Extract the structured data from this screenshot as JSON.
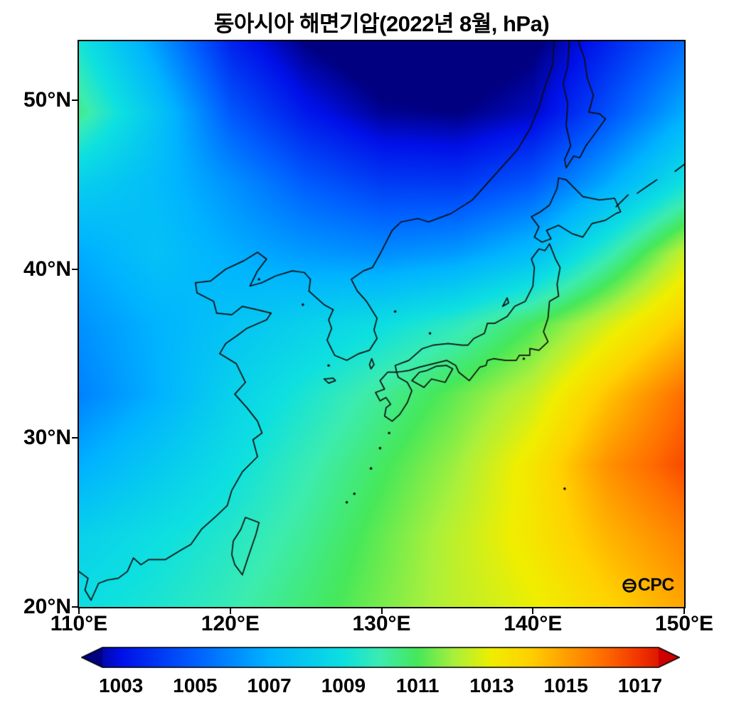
{
  "chart_data": {
    "type": "heatmap",
    "title": "동아시아 해면기압(2022년 8월, hPa)",
    "variable": "sea level pressure",
    "units": "hPa",
    "x_axis": {
      "range": [
        110,
        150
      ],
      "ticks": [
        {
          "label": "110°E",
          "lon": 110
        },
        {
          "label": "120°E",
          "lon": 120
        },
        {
          "label": "130°E",
          "lon": 130
        },
        {
          "label": "140°E",
          "lon": 140
        },
        {
          "label": "150°E",
          "lon": 150
        }
      ]
    },
    "y_axis": {
      "range": [
        20,
        53.5
      ],
      "ticks": [
        {
          "label": "50°N",
          "lat": 50
        },
        {
          "label": "40°N",
          "lat": 40
        },
        {
          "label": "30°N",
          "lat": 30
        },
        {
          "label": "20°N",
          "lat": 20
        }
      ]
    },
    "grid": {
      "lons": [
        110,
        115,
        120,
        125,
        130,
        135,
        140,
        145,
        150
      ],
      "lats": [
        53.5,
        49.31,
        45.13,
        40.94,
        36.75,
        32.56,
        28.38,
        24.19,
        20.0
      ],
      "values_hpa": [
        [
          1009.2,
          1006.5,
          1003.5,
          1002.0,
          1001.2,
          1001.2,
          1001.8,
          1003.5,
          1005.2
        ],
        [
          1010.4,
          1007.8,
          1004.8,
          1003.2,
          1002.2,
          1002.0,
          1002.6,
          1004.6,
          1006.8
        ],
        [
          1008.2,
          1007.4,
          1006.2,
          1004.9,
          1004.1,
          1004.0,
          1004.8,
          1006.8,
          1009.0
        ],
        [
          1006.8,
          1007.6,
          1006.9,
          1006.4,
          1006.1,
          1006.4,
          1007.4,
          1009.8,
          1012.4
        ],
        [
          1006.2,
          1007.0,
          1007.7,
          1008.3,
          1008.9,
          1009.7,
          1011.0,
          1012.6,
          1014.2
        ],
        [
          1005.8,
          1006.9,
          1008.3,
          1009.3,
          1010.3,
          1011.3,
          1012.4,
          1014.3,
          1016.0
        ],
        [
          1006.9,
          1007.9,
          1008.9,
          1009.9,
          1010.9,
          1011.9,
          1013.3,
          1015.3,
          1016.6
        ],
        [
          1008.3,
          1008.9,
          1009.5,
          1010.3,
          1011.3,
          1012.3,
          1013.3,
          1014.6,
          1015.6
        ],
        [
          1008.9,
          1009.3,
          1009.9,
          1010.7,
          1011.5,
          1012.3,
          1012.9,
          1013.9,
          1014.9
        ]
      ]
    },
    "colormap": {
      "stops": [
        [
          1002.0,
          "#000080"
        ],
        [
          1003.0,
          "#0010e8"
        ],
        [
          1005.0,
          "#0060ff"
        ],
        [
          1007.0,
          "#00b4ff"
        ],
        [
          1009.0,
          "#0ee0e0"
        ],
        [
          1010.0,
          "#3cecb0"
        ],
        [
          1011.0,
          "#46e85a"
        ],
        [
          1012.0,
          "#aaf03c"
        ],
        [
          1013.0,
          "#f0ee00"
        ],
        [
          1014.0,
          "#ffd200"
        ],
        [
          1015.0,
          "#ffa000"
        ],
        [
          1016.0,
          "#ff6e00"
        ],
        [
          1017.0,
          "#f23400"
        ],
        [
          1018.0,
          "#cc0000"
        ]
      ],
      "under": "#000080",
      "over": "#cc0000"
    },
    "colorbar": {
      "vmin": 1002.5,
      "vmax": 1017.5,
      "tick_values": [
        1003,
        1005,
        1007,
        1009,
        1011,
        1013,
        1015,
        1017
      ],
      "tick_labels": [
        "1003",
        "1005",
        "1007",
        "1009",
        "1011",
        "1013",
        "1015",
        "1017"
      ]
    },
    "coastlines": [
      [
        [
          110,
          22.1
        ],
        [
          110.6,
          21.7
        ],
        [
          110.4,
          21.0
        ],
        [
          110.8,
          20.4
        ],
        [
          111.3,
          21.4
        ],
        [
          111.9,
          21.6
        ],
        [
          112.6,
          21.7
        ],
        [
          113.2,
          22.1
        ],
        [
          113.6,
          22.9
        ],
        [
          114.1,
          22.5
        ],
        [
          114.6,
          22.8
        ],
        [
          115.7,
          22.8
        ],
        [
          116.8,
          23.4
        ],
        [
          117.4,
          23.7
        ],
        [
          118.1,
          24.6
        ],
        [
          119.1,
          25.4
        ],
        [
          119.8,
          26.0
        ],
        [
          120.1,
          26.9
        ],
        [
          120.8,
          28.0
        ],
        [
          121.8,
          28.9
        ],
        [
          121.5,
          29.9
        ],
        [
          122.1,
          30.3
        ],
        [
          121.8,
          31.0
        ],
        [
          121.1,
          31.8
        ],
        [
          120.3,
          32.6
        ],
        [
          121.0,
          33.3
        ],
        [
          120.4,
          34.4
        ],
        [
          119.3,
          35.0
        ],
        [
          119.7,
          35.6
        ],
        [
          120.5,
          36.1
        ],
        [
          121.1,
          36.5
        ],
        [
          122.4,
          37.0
        ],
        [
          122.7,
          37.4
        ],
        [
          121.8,
          37.6
        ],
        [
          120.8,
          37.8
        ],
        [
          120.1,
          37.3
        ],
        [
          119.1,
          37.4
        ],
        [
          118.9,
          38.1
        ],
        [
          117.8,
          38.6
        ],
        [
          117.7,
          39.2
        ],
        [
          118.7,
          39.3
        ],
        [
          119.7,
          40.0
        ],
        [
          120.9,
          40.5
        ],
        [
          121.8,
          41.0
        ],
        [
          122.4,
          40.6
        ],
        [
          121.8,
          39.9
        ],
        [
          121.3,
          39.0
        ],
        [
          122.1,
          39.2
        ],
        [
          123.0,
          39.6
        ],
        [
          124.1,
          39.9
        ],
        [
          124.9,
          39.8
        ],
        [
          125.3,
          39.4
        ],
        [
          125.2,
          38.7
        ],
        [
          126.2,
          37.9
        ],
        [
          126.8,
          37.6
        ],
        [
          126.5,
          37.0
        ],
        [
          126.7,
          36.5
        ],
        [
          126.4,
          35.8
        ],
        [
          126.9,
          34.9
        ],
        [
          127.7,
          34.6
        ],
        [
          128.5,
          35.0
        ],
        [
          129.2,
          35.2
        ],
        [
          129.7,
          35.9
        ],
        [
          129.5,
          36.4
        ],
        [
          129.7,
          37.1
        ],
        [
          129.0,
          38.1
        ],
        [
          128.4,
          38.7
        ],
        [
          128.0,
          39.4
        ],
        [
          128.8,
          39.9
        ],
        [
          129.4,
          40.1
        ],
        [
          129.9,
          40.9
        ],
        [
          130.7,
          42.3
        ],
        [
          131.3,
          42.8
        ],
        [
          132.4,
          43.0
        ],
        [
          133.1,
          42.8
        ],
        [
          134.6,
          43.3
        ],
        [
          136.0,
          44.1
        ],
        [
          137.0,
          45.1
        ],
        [
          138.0,
          46.1
        ],
        [
          139.0,
          47.1
        ],
        [
          139.8,
          48.3
        ],
        [
          140.4,
          49.6
        ],
        [
          140.8,
          50.8
        ],
        [
          141.3,
          52.1
        ],
        [
          141.4,
          53.5
        ]
      ],
      [
        [
          142.4,
          53.5
        ],
        [
          142.3,
          52.0
        ],
        [
          142.0,
          51.0
        ],
        [
          142.3,
          49.8
        ],
        [
          142.2,
          48.5
        ],
        [
          142.5,
          47.3
        ],
        [
          142.1,
          46.5
        ],
        [
          142.2,
          46.0
        ],
        [
          142.7,
          46.7
        ],
        [
          143.1,
          46.6
        ],
        [
          143.5,
          47.3
        ],
        [
          144.4,
          48.4
        ],
        [
          144.8,
          48.9
        ],
        [
          144.4,
          49.2
        ],
        [
          143.7,
          49.3
        ],
        [
          144.0,
          50.3
        ],
        [
          143.6,
          51.3
        ],
        [
          143.4,
          52.5
        ],
        [
          143.0,
          53.5
        ]
      ],
      [
        [
          139.9,
          43.1
        ],
        [
          140.4,
          42.5
        ],
        [
          140.1,
          41.9
        ],
        [
          140.6,
          41.6
        ],
        [
          141.2,
          41.8
        ],
        [
          140.9,
          42.3
        ],
        [
          141.7,
          42.6
        ],
        [
          142.6,
          42.1
        ],
        [
          143.3,
          41.9
        ],
        [
          143.9,
          42.7
        ],
        [
          144.8,
          42.9
        ],
        [
          145.5,
          43.3
        ],
        [
          145.8,
          43.4
        ],
        [
          145.4,
          44.2
        ],
        [
          144.4,
          44.1
        ],
        [
          143.3,
          44.3
        ],
        [
          142.2,
          45.3
        ],
        [
          141.7,
          45.4
        ],
        [
          141.6,
          44.8
        ],
        [
          141.1,
          43.8
        ],
        [
          140.5,
          43.4
        ],
        [
          139.9,
          43.1
        ]
      ],
      [
        [
          141.1,
          41.5
        ],
        [
          141.5,
          40.6
        ],
        [
          141.8,
          40.1
        ],
        [
          141.6,
          39.1
        ],
        [
          141.7,
          38.4
        ],
        [
          141.1,
          38.1
        ],
        [
          141.0,
          37.1
        ],
        [
          140.7,
          36.3
        ],
        [
          141.0,
          35.7
        ],
        [
          140.4,
          35.2
        ],
        [
          139.8,
          35.3
        ],
        [
          139.8,
          34.9
        ],
        [
          139.1,
          34.9
        ],
        [
          138.9,
          34.6
        ],
        [
          138.2,
          34.6
        ],
        [
          137.4,
          34.7
        ],
        [
          137.0,
          34.6
        ],
        [
          136.9,
          34.3
        ],
        [
          136.5,
          34.2
        ],
        [
          135.8,
          33.4
        ],
        [
          135.1,
          33.9
        ],
        [
          134.9,
          34.3
        ],
        [
          134.3,
          34.6
        ],
        [
          133.4,
          34.4
        ],
        [
          132.5,
          34.2
        ],
        [
          131.8,
          34.0
        ],
        [
          131.0,
          33.9
        ],
        [
          130.9,
          34.3
        ],
        [
          131.8,
          34.6
        ],
        [
          132.7,
          35.3
        ],
        [
          133.4,
          35.5
        ],
        [
          134.4,
          35.6
        ],
        [
          135.3,
          35.5
        ],
        [
          135.7,
          35.5
        ],
        [
          136.1,
          35.9
        ],
        [
          136.8,
          36.2
        ],
        [
          137.0,
          36.8
        ],
        [
          137.5,
          36.8
        ],
        [
          138.3,
          37.2
        ],
        [
          138.8,
          37.8
        ],
        [
          139.5,
          38.1
        ],
        [
          140.0,
          39.0
        ],
        [
          140.1,
          40.1
        ],
        [
          139.9,
          40.6
        ],
        [
          140.4,
          41.2
        ],
        [
          140.8,
          41.1
        ],
        [
          141.1,
          41.5
        ]
      ],
      [
        [
          132.0,
          33.4
        ],
        [
          132.8,
          33.0
        ],
        [
          133.3,
          33.5
        ],
        [
          134.2,
          33.3
        ],
        [
          134.7,
          34.1
        ],
        [
          134.3,
          34.3
        ],
        [
          133.6,
          34.25
        ],
        [
          133.0,
          34.0
        ],
        [
          132.5,
          33.9
        ],
        [
          132.0,
          33.4
        ]
      ],
      [
        [
          130.2,
          31.3
        ],
        [
          130.7,
          31.0
        ],
        [
          131.2,
          31.4
        ],
        [
          131.7,
          32.1
        ],
        [
          132.0,
          32.8
        ],
        [
          131.7,
          33.3
        ],
        [
          131.1,
          33.6
        ],
        [
          131.0,
          33.9
        ],
        [
          130.4,
          33.9
        ],
        [
          129.9,
          33.4
        ],
        [
          130.2,
          32.9
        ],
        [
          129.6,
          32.7
        ],
        [
          129.9,
          32.2
        ],
        [
          130.3,
          32.4
        ],
        [
          130.6,
          32.0
        ],
        [
          130.3,
          31.8
        ],
        [
          130.2,
          31.3
        ]
      ],
      [
        [
          121.0,
          25.3
        ],
        [
          121.9,
          25.0
        ],
        [
          121.7,
          24.3
        ],
        [
          121.2,
          23.0
        ],
        [
          120.8,
          21.9
        ],
        [
          120.3,
          22.5
        ],
        [
          120.1,
          23.1
        ],
        [
          120.2,
          23.9
        ],
        [
          120.7,
          24.6
        ],
        [
          121.0,
          25.3
        ]
      ],
      [
        [
          126.2,
          33.5
        ],
        [
          126.8,
          33.55
        ],
        [
          126.95,
          33.4
        ],
        [
          126.5,
          33.25
        ],
        [
          126.2,
          33.5
        ]
      ],
      [
        [
          129.3,
          34.1
        ],
        [
          129.5,
          34.35
        ],
        [
          129.35,
          34.7
        ],
        [
          129.2,
          34.35
        ],
        [
          129.3,
          34.1
        ]
      ],
      [
        [
          138.0,
          37.8
        ],
        [
          138.4,
          38.0
        ],
        [
          138.3,
          38.3
        ],
        [
          138.0,
          37.8
        ]
      ],
      [
        [
          145.5,
          43.7
        ],
        [
          146.3,
          44.4
        ]
      ],
      [
        [
          146.9,
          44.5
        ],
        [
          147.7,
          45.0
        ],
        [
          148.2,
          45.3
        ]
      ],
      [
        [
          149.4,
          45.8
        ],
        [
          150.0,
          46.2
        ]
      ]
    ],
    "island_dots": [
      [
        130.9,
        37.5
      ],
      [
        133.2,
        36.2
      ],
      [
        139.4,
        34.7
      ],
      [
        127.7,
        26.2
      ],
      [
        128.2,
        26.7
      ],
      [
        129.3,
        28.2
      ],
      [
        129.9,
        29.4
      ],
      [
        130.5,
        30.3
      ],
      [
        142.1,
        27.0
      ],
      [
        126.5,
        34.3
      ],
      [
        124.8,
        37.9
      ],
      [
        121.9,
        39.4
      ]
    ]
  },
  "watermark": {
    "icon": "globe-icon",
    "text": "CPC"
  }
}
